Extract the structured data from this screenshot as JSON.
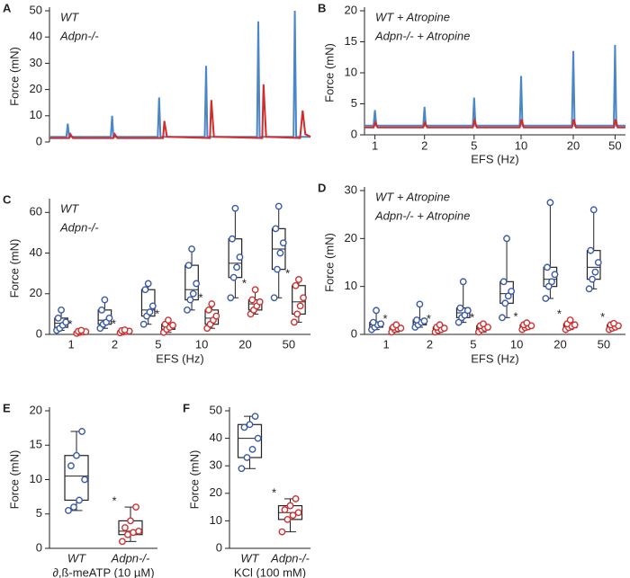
{
  "chart_data": [
    {
      "type": "line",
      "panel_label": "A",
      "ylabel": "Force (mN)",
      "xlim": [
        0,
        100
      ],
      "ylim": [
        0,
        50
      ],
      "yticks": [
        0,
        10,
        20,
        30,
        40,
        50
      ],
      "legend": true,
      "series": [
        {
          "name": "WT",
          "color": "#4a86c8",
          "x": [
            0,
            6.5,
            7,
            7.5,
            23.5,
            24,
            24.5,
            41.5,
            42,
            42.5,
            59.5,
            60,
            60.5,
            79.5,
            80,
            80.5,
            93.5,
            94,
            94.5,
            100
          ],
          "y": [
            2,
            2,
            7,
            2,
            2,
            10,
            2,
            2,
            17,
            2,
            2,
            29,
            2,
            2,
            46,
            2,
            2,
            50,
            2,
            2
          ]
        },
        {
          "name": "Adpn-/-",
          "color": "#d42a2a",
          "x": [
            0,
            7.5,
            8,
            9,
            24.5,
            25,
            26,
            43.5,
            44,
            45,
            61.5,
            62,
            63,
            81.5,
            82,
            83,
            96,
            97,
            98,
            100
          ],
          "y": [
            1.5,
            1.5,
            3,
            1.5,
            1.5,
            3,
            1.5,
            1.5,
            8,
            2,
            1.5,
            16,
            2,
            1.5,
            22,
            2,
            1.5,
            12,
            3,
            2
          ]
        }
      ]
    },
    {
      "type": "line",
      "panel_label": "B",
      "ylabel": "Force (mN)",
      "xlabel": "EFS (Hz)",
      "xlim": [
        0,
        100
      ],
      "ylim": [
        0,
        20
      ],
      "yticks": [
        0,
        5,
        10,
        15,
        20
      ],
      "legend": true,
      "xticks": [
        {
          "value": 4,
          "label": "1"
        },
        {
          "value": 23,
          "label": "2"
        },
        {
          "value": 42,
          "label": "5"
        },
        {
          "value": 60,
          "label": "10"
        },
        {
          "value": 80,
          "label": "20"
        },
        {
          "value": 96,
          "label": "50"
        }
      ],
      "series": [
        {
          "name": "WT + Atropine",
          "color": "#4a86c8",
          "x": [
            0,
            3.5,
            4,
            4.5,
            22.5,
            23,
            23.5,
            41.5,
            42,
            42.5,
            59.5,
            60,
            60.5,
            79.5,
            80,
            80.5,
            95.5,
            96,
            96.5,
            100
          ],
          "y": [
            1.5,
            1.5,
            4,
            1.5,
            1.5,
            4.5,
            1.5,
            1.5,
            6,
            1.5,
            1.5,
            9.5,
            1.5,
            1.5,
            13.5,
            1.5,
            1.5,
            14.5,
            1.5,
            1.5
          ]
        },
        {
          "name": "Adpn-/- + Atropine",
          "color": "#d42a2a",
          "x": [
            0,
            3.5,
            4.2,
            5,
            22.5,
            23.2,
            24,
            41.5,
            42.2,
            43,
            59.5,
            60.2,
            61,
            79.5,
            80.2,
            81,
            95.5,
            96.2,
            97,
            100
          ],
          "y": [
            1.2,
            1.2,
            2,
            1.2,
            1.2,
            2,
            1.2,
            1.2,
            2.3,
            1.2,
            1.2,
            2.5,
            1.2,
            1.2,
            2.5,
            1.2,
            1.2,
            2.5,
            1.2,
            1.2
          ]
        }
      ]
    },
    {
      "type": "box",
      "panel_label": "C",
      "ylabel": "Force (mN)",
      "xlabel": "EFS (Hz)",
      "ylim": [
        0,
        65
      ],
      "yticks": [
        0,
        20,
        40,
        60
      ],
      "legend": true,
      "categories": [
        "1",
        "2",
        "5",
        "10",
        "20",
        "50"
      ],
      "series": [
        {
          "name": "WT",
          "color": "#3a5aa8",
          "boxes": [
            {
              "min": 2,
              "q1": 3.5,
              "median": 5.5,
              "q3": 8,
              "max": 12,
              "points": [
                2,
                3,
                4.5,
                6,
                8,
                12
              ]
            },
            {
              "min": 3,
              "q1": 5,
              "median": 7,
              "q3": 12,
              "max": 17,
              "points": [
                3,
                5,
                6,
                8,
                12,
                17
              ]
            },
            {
              "min": 5,
              "q1": 9,
              "median": 12,
              "q3": 22,
              "max": 25,
              "points": [
                5,
                9,
                11,
                14,
                22,
                25
              ]
            },
            {
              "min": 12,
              "q1": 17,
              "median": 22,
              "q3": 34,
              "max": 42,
              "points": [
                12,
                17,
                20,
                25,
                34,
                42
              ]
            },
            {
              "min": 18,
              "q1": 28,
              "median": 35,
              "q3": 47,
              "max": 62,
              "points": [
                18,
                28,
                33,
                38,
                47,
                62
              ]
            },
            {
              "min": 18,
              "q1": 32,
              "median": 42,
              "q3": 52,
              "max": 63,
              "points": [
                18,
                32,
                40,
                45,
                52,
                63
              ]
            }
          ]
        },
        {
          "name": "Adpn-/-",
          "color": "#d03030",
          "significance": [
            "*",
            "*",
            "*",
            "*",
            "*",
            "*"
          ],
          "boxes": [
            {
              "min": 0.5,
              "q1": 1,
              "median": 1.2,
              "q3": 1.5,
              "max": 2,
              "points": [
                0.5,
                1,
                1.2,
                1.3,
                1.5,
                2
              ]
            },
            {
              "min": 0.8,
              "q1": 1.2,
              "median": 1.5,
              "q3": 1.8,
              "max": 2.2,
              "points": [
                0.8,
                1.2,
                1.4,
                1.6,
                1.8,
                2.2
              ]
            },
            {
              "min": 1,
              "q1": 2.5,
              "median": 4,
              "q3": 5,
              "max": 7,
              "points": [
                1,
                2.5,
                3.5,
                4.5,
                5,
                7
              ]
            },
            {
              "min": 3,
              "q1": 5,
              "median": 8,
              "q3": 12,
              "max": 15,
              "points": [
                3,
                5,
                7,
                9,
                12,
                15
              ]
            },
            {
              "min": 10,
              "q1": 12,
              "median": 15,
              "q3": 17,
              "max": 22,
              "points": [
                10,
                12,
                14,
                16,
                17,
                22
              ]
            },
            {
              "min": 6,
              "q1": 10,
              "median": 16,
              "q3": 24,
              "max": 27,
              "points": [
                6,
                10,
                14,
                18,
                24,
                27
              ]
            }
          ]
        }
      ]
    },
    {
      "type": "box",
      "panel_label": "D",
      "ylabel": "Force (mN)",
      "xlabel": "EFS (Hz)",
      "ylim": [
        0,
        30
      ],
      "yticks": [
        0,
        10,
        20,
        30
      ],
      "legend": true,
      "categories": [
        "1",
        "2",
        "5",
        "10",
        "20",
        "50"
      ],
      "series": [
        {
          "name": "WT + Atropine",
          "color": "#3a5aa8",
          "boxes": [
            {
              "min": 1,
              "q1": 1.5,
              "median": 2,
              "q3": 2.5,
              "max": 5,
              "points": [
                1,
                1.5,
                2,
                2.2,
                2.5,
                5
              ]
            },
            {
              "min": 1.5,
              "q1": 2,
              "median": 2.5,
              "q3": 3,
              "max": 6.3,
              "points": [
                1.5,
                2,
                2.5,
                2.8,
                3,
                6.3
              ]
            },
            {
              "min": 2.5,
              "q1": 3.5,
              "median": 4.5,
              "q3": 5.5,
              "max": 11,
              "points": [
                2.5,
                3.5,
                4,
                5,
                5.5,
                11
              ]
            },
            {
              "min": 3.5,
              "q1": 6.5,
              "median": 8.5,
              "q3": 11,
              "max": 20,
              "points": [
                3.5,
                6.5,
                8,
                9,
                11,
                20
              ]
            },
            {
              "min": 7.5,
              "q1": 10,
              "median": 11.5,
              "q3": 14,
              "max": 27.5,
              "points": [
                7.5,
                10,
                11,
                12.5,
                14,
                27.5
              ]
            },
            {
              "min": 9.5,
              "q1": 11.5,
              "median": 14,
              "q3": 17.5,
              "max": 26,
              "points": [
                9.5,
                11.5,
                13,
                15,
                17.5,
                26
              ]
            }
          ]
        },
        {
          "name": "Adpn-/- + Atropine",
          "color": "#d03030",
          "significance": [
            "*",
            "*",
            "*",
            "*",
            "*",
            "*"
          ],
          "boxes": [
            {
              "min": 0.5,
              "q1": 1,
              "median": 1.2,
              "q3": 1.5,
              "max": 2,
              "points": [
                0.5,
                1,
                1.2,
                1.3,
                1.5,
                2
              ]
            },
            {
              "min": 0.5,
              "q1": 0.8,
              "median": 1.2,
              "q3": 1.5,
              "max": 2,
              "points": [
                0.5,
                0.8,
                1,
                1.3,
                1.5,
                2
              ]
            },
            {
              "min": 0.5,
              "q1": 1,
              "median": 1.3,
              "q3": 1.8,
              "max": 2.2,
              "points": [
                0.5,
                1,
                1.3,
                1.5,
                1.8,
                2.2
              ]
            },
            {
              "min": 1,
              "q1": 1.4,
              "median": 1.7,
              "q3": 2,
              "max": 2.4,
              "points": [
                1,
                1.4,
                1.6,
                1.8,
                2,
                2.4
              ]
            },
            {
              "min": 1,
              "q1": 1.4,
              "median": 1.8,
              "q3": 2.2,
              "max": 3,
              "points": [
                1,
                1.4,
                1.7,
                2,
                2.2,
                3
              ]
            },
            {
              "min": 1,
              "q1": 1.3,
              "median": 1.6,
              "q3": 2,
              "max": 2.3,
              "points": [
                1,
                1.3,
                1.5,
                1.8,
                2,
                2.3
              ]
            }
          ]
        }
      ]
    },
    {
      "type": "box",
      "panel_label": "E",
      "ylabel": "Force (mN)",
      "xlabel": "∂,ß-meATP (10 µM)",
      "ylim": [
        0,
        20
      ],
      "yticks": [
        0,
        5,
        10,
        15,
        20
      ],
      "legend": false,
      "series": [
        {
          "name": "WT",
          "color": "#3a5aa8",
          "boxes": [
            {
              "min": 5.5,
              "q1": 7,
              "median": 10.5,
              "q3": 13.5,
              "max": 17,
              "points": [
                5.5,
                6,
                7,
                10,
                12,
                13.5,
                17
              ]
            }
          ]
        },
        {
          "name": "Adpn-/-",
          "color": "#d03030",
          "significance": [
            "*"
          ],
          "boxes": [
            {
              "min": 1,
              "q1": 2,
              "median": 2.5,
              "q3": 4,
              "max": 6,
              "points": [
                1,
                2,
                2.3,
                2.5,
                3,
                4,
                6
              ]
            }
          ]
        }
      ]
    },
    {
      "type": "box",
      "panel_label": "F",
      "ylabel": "Force (mN)",
      "xlabel": "KCl (100 mM)",
      "ylim": [
        0,
        50
      ],
      "yticks": [
        0,
        10,
        20,
        30,
        40,
        50
      ],
      "legend": false,
      "series": [
        {
          "name": "WT",
          "color": "#3a5aa8",
          "boxes": [
            {
              "min": 29,
              "q1": 33,
              "median": 40,
              "q3": 45,
              "max": 48,
              "points": [
                29,
                33,
                36,
                40,
                44,
                45,
                48
              ]
            }
          ]
        },
        {
          "name": "Adpn-/-",
          "color": "#d03030",
          "significance": [
            "*"
          ],
          "boxes": [
            {
              "min": 6,
              "q1": 10.5,
              "median": 13,
              "q3": 15.5,
              "max": 18,
              "points": [
                6,
                10.5,
                12,
                13,
                14,
                15.5,
                18
              ]
            }
          ]
        }
      ]
    }
  ]
}
